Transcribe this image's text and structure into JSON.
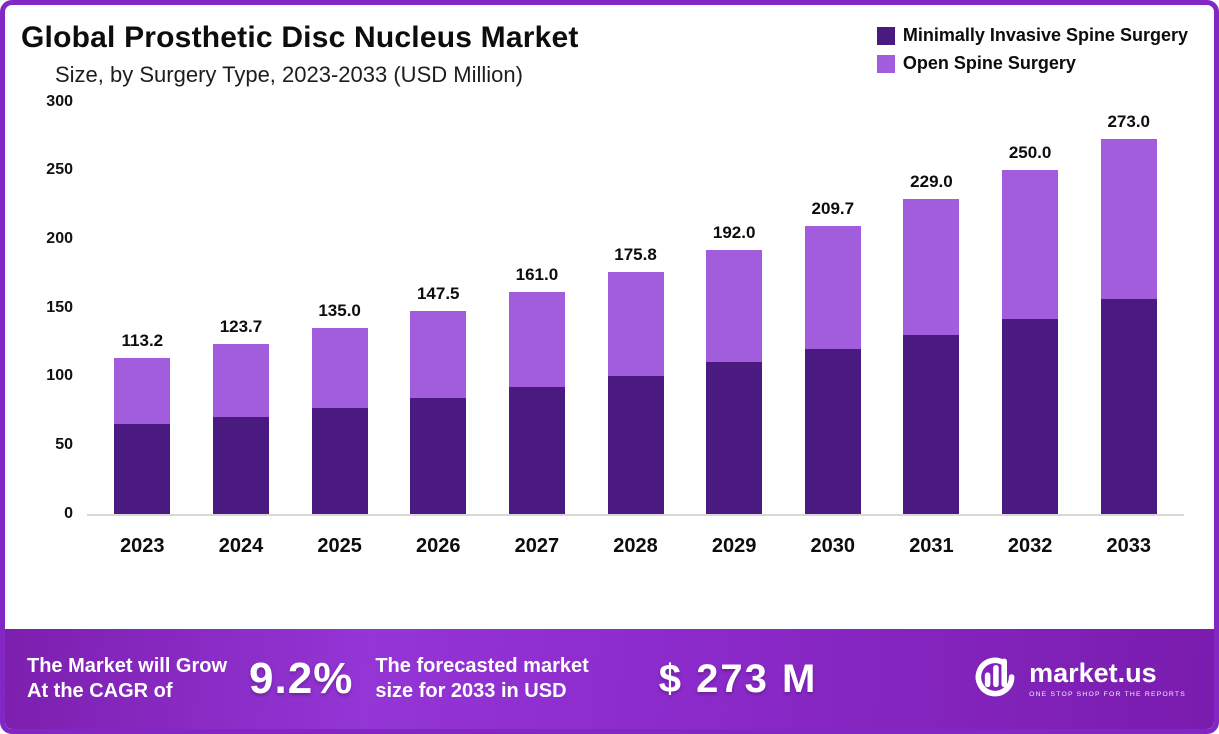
{
  "header": {
    "title": "Global Prosthetic Disc Nucleus Market",
    "subtitle": "Size, by Surgery Type, 2023-2033 (USD Million)"
  },
  "colors": {
    "minimally_invasive": "#4a1a80",
    "open_spine": "#a15ddc",
    "border_purple": "#8227c4"
  },
  "chart_data": {
    "type": "bar",
    "stacked": true,
    "title": "Global Prosthetic Disc Nucleus Market Size, by Surgery Type, 2023-2033 (USD Million)",
    "categories": [
      "2023",
      "2024",
      "2025",
      "2026",
      "2027",
      "2028",
      "2029",
      "2030",
      "2031",
      "2032",
      "2033"
    ],
    "series": [
      {
        "name": "Minimally Invasive Spine Surgery",
        "color": "#4a1a80",
        "values": [
          65,
          70,
          77,
          84,
          92,
          100,
          110,
          120,
          130,
          142,
          156
        ]
      },
      {
        "name": "Open Spine Surgery",
        "color": "#a15ddc",
        "values": [
          48.2,
          53.7,
          58.0,
          63.5,
          69.0,
          75.8,
          82.0,
          89.7,
          99.0,
          108.0,
          117.0
        ]
      }
    ],
    "totals": [
      113.2,
      123.7,
      135.0,
      147.5,
      161.0,
      175.8,
      192.0,
      209.7,
      229.0,
      250.0,
      273.0
    ],
    "total_labels": [
      "113.2",
      "123.7",
      "135.0",
      "147.5",
      "161.0",
      "175.8",
      "192.0",
      "209.7",
      "229.0",
      "250.0",
      "273.0"
    ],
    "xlabel": "",
    "ylabel": "",
    "ylim": [
      0,
      300
    ],
    "yticks": [
      0,
      50,
      100,
      150,
      200,
      250,
      300
    ],
    "grid": false,
    "legend_position": "top-right"
  },
  "legend": [
    {
      "label": "Minimally Invasive Spine Surgery",
      "color": "#4a1a80"
    },
    {
      "label": "Open Spine Surgery",
      "color": "#a15ddc"
    }
  ],
  "banner": {
    "left_line1": "The Market will Grow",
    "left_line2": "At the CAGR of",
    "cagr": "9.2%",
    "mid_line1": "The forecasted market",
    "mid_line2": "size for 2033 in USD",
    "value": "$ 273 M",
    "brand": "market.us",
    "tagline": "ONE STOP SHOP FOR THE REPORTS"
  }
}
